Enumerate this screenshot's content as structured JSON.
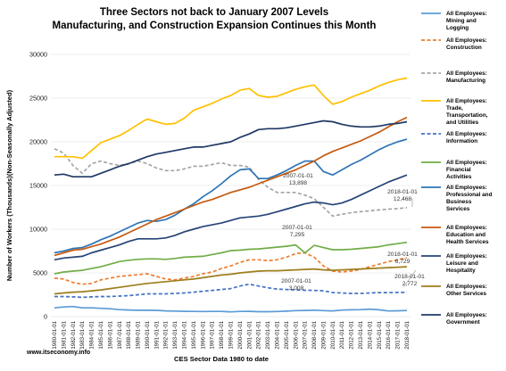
{
  "chart_data": {
    "type": "line",
    "title_line1": "Three Sectors not back to January 2007 Levels",
    "title_line2": "Manufacturing, and Construction Expansion Continues this Month",
    "xlabel": "CES Sector Data 1980 to date",
    "ylabel": "Number of Workers (Thousands)(Non-Seasonally Adjusted)",
    "source": "www.itseconomy.info",
    "ylim": [
      0,
      30000
    ],
    "yticks": [
      "0",
      "5000",
      "10000",
      "15000",
      "20000",
      "25000",
      "30000"
    ],
    "ytick_values": [
      0,
      5000,
      10000,
      15000,
      20000,
      25000,
      30000
    ],
    "grid": true,
    "legend_position": "right",
    "x": [
      "1980-01-01",
      "1981-01-01",
      "1982-01-01",
      "1983-01-01",
      "1984-01-01",
      "1985-01-01",
      "1986-01-01",
      "1987-01-01",
      "1988-01-01",
      "1989-01-01",
      "1990-01-01",
      "1991-01-01",
      "1992-01-01",
      "1993-01-01",
      "1994-01-01",
      "1995-01-01",
      "1996-01-01",
      "1997-01-01",
      "1998-01-01",
      "1999-01-01",
      "2000-01-01",
      "2001-01-01",
      "2002-01-01",
      "2003-01-01",
      "2004-01-01",
      "2005-01-01",
      "2006-01-01",
      "2007-01-01",
      "2008-01-01",
      "2009-01-01",
      "2010-01-01",
      "2011-01-01",
      "2012-01-01",
      "2013-01-01",
      "2014-01-01",
      "2015-01-01",
      "2016-01-01",
      "2017-01-01",
      "2018-01-01"
    ],
    "series": [
      {
        "name": "All Employees: Mining and Logging",
        "color": "#5b9bd5",
        "dash": "solid",
        "values": [
          1000,
          1100,
          1150,
          1000,
          1000,
          950,
          900,
          800,
          750,
          720,
          720,
          710,
          650,
          630,
          600,
          590,
          580,
          590,
          590,
          540,
          590,
          600,
          560,
          560,
          580,
          620,
          680,
          700,
          730,
          680,
          650,
          740,
          780,
          800,
          860,
          780,
          640,
          660,
          690
        ]
      },
      {
        "name": "All Employees: Construction",
        "color": "#ed7d31",
        "dash": "dashed",
        "values": [
          4400,
          4300,
          3900,
          3700,
          3800,
          4200,
          4400,
          4600,
          4700,
          4800,
          4900,
          4600,
          4300,
          4200,
          4400,
          4600,
          4900,
          5100,
          5500,
          5800,
          6200,
          6500,
          6500,
          6400,
          6500,
          6800,
          7200,
          7300,
          6800,
          5800,
          5200,
          5100,
          5200,
          5400,
          5700,
          6000,
          6300,
          6500,
          6729
        ]
      },
      {
        "name": "All Employees: Manufacturing",
        "color": "#a5a5a5",
        "dash": "dashed",
        "values": [
          19200,
          18700,
          17300,
          16400,
          17500,
          17800,
          17500,
          17300,
          17500,
          17800,
          17500,
          17000,
          16700,
          16700,
          16900,
          17200,
          17200,
          17400,
          17600,
          17300,
          17300,
          17100,
          15700,
          14800,
          14200,
          14200,
          14200,
          13898,
          13500,
          12500,
          11500,
          11700,
          11900,
          12000,
          12100,
          12200,
          12300,
          12350,
          12468
        ]
      },
      {
        "name": "All Employees: Trade, Transportation, and Utilities",
        "color": "#ffc000",
        "dash": "solid",
        "values": [
          18300,
          18300,
          18300,
          18100,
          19000,
          19900,
          20300,
          20700,
          21300,
          22000,
          22600,
          22300,
          22000,
          22100,
          22700,
          23600,
          24000,
          24400,
          24900,
          25300,
          25900,
          26100,
          25300,
          25100,
          25200,
          25600,
          26000,
          26300,
          26500,
          25300,
          24300,
          24600,
          25100,
          25500,
          25900,
          26400,
          26800,
          27100,
          27300
        ]
      },
      {
        "name": "All Employees: Information",
        "color": "#4472c4",
        "dash": "dashed",
        "values": [
          2300,
          2300,
          2250,
          2200,
          2250,
          2300,
          2300,
          2350,
          2400,
          2500,
          2600,
          2600,
          2600,
          2650,
          2700,
          2800,
          2900,
          3000,
          3100,
          3200,
          3500,
          3700,
          3500,
          3300,
          3150,
          3100,
          3050,
          3008,
          3000,
          2950,
          2750,
          2700,
          2650,
          2650,
          2700,
          2750,
          2750,
          2770,
          2772
        ]
      },
      {
        "name": "All Employees: Financial Activities",
        "color": "#70ad47",
        "dash": "solid",
        "values": [
          4900,
          5100,
          5200,
          5300,
          5500,
          5700,
          6000,
          6300,
          6450,
          6550,
          6600,
          6600,
          6550,
          6650,
          6800,
          6850,
          6900,
          7100,
          7300,
          7550,
          7600,
          7700,
          7750,
          7850,
          7950,
          8050,
          8200,
          7295,
          8150,
          7900,
          7650,
          7650,
          7700,
          7800,
          7900,
          8000,
          8200,
          8350,
          8500
        ]
      },
      {
        "name": "All Employees: Professional and Business Services",
        "color": "#2e75b6",
        "dash": "solid",
        "values": [
          7300,
          7500,
          7800,
          7900,
          8300,
          8800,
          9200,
          9700,
          10200,
          10700,
          11000,
          10900,
          11100,
          11600,
          12300,
          12900,
          13700,
          14400,
          15200,
          16100,
          16800,
          16900,
          15800,
          15800,
          16200,
          16700,
          17300,
          17800,
          17800,
          16600,
          16200,
          16800,
          17400,
          17900,
          18500,
          19100,
          19600,
          20000,
          20300
        ]
      },
      {
        "name": "All Employees: Education and Health Services",
        "color": "#c55a11",
        "dash": "solid",
        "values": [
          7000,
          7300,
          7600,
          7700,
          8000,
          8300,
          8700,
          9100,
          9600,
          10100,
          10600,
          11100,
          11500,
          11900,
          12300,
          12700,
          13100,
          13400,
          13800,
          14200,
          14500,
          14800,
          15200,
          15600,
          16000,
          16400,
          16800,
          17300,
          17800,
          18400,
          18900,
          19300,
          19700,
          20100,
          20600,
          21100,
          21700,
          22300,
          22800
        ]
      },
      {
        "name": "All Employees: Leisure and Hospitality",
        "color": "#264478",
        "dash": "solid",
        "values": [
          6500,
          6700,
          6800,
          6900,
          7300,
          7600,
          7900,
          8200,
          8600,
          8900,
          8900,
          8900,
          9000,
          9300,
          9700,
          10000,
          10300,
          10500,
          10700,
          11000,
          11300,
          11400,
          11500,
          11700,
          12000,
          12300,
          12600,
          12900,
          13100,
          13000,
          12800,
          13000,
          13400,
          13900,
          14400,
          14900,
          15400,
          15800,
          16200
        ]
      },
      {
        "name": "All Employees: Other Services",
        "color": "#9e7d1d",
        "dash": "solid",
        "values": [
          2600,
          2700,
          2800,
          2850,
          2950,
          3050,
          3200,
          3350,
          3500,
          3650,
          3800,
          3900,
          4000,
          4100,
          4200,
          4300,
          4450,
          4600,
          4750,
          4850,
          5000,
          5100,
          5200,
          5250,
          5250,
          5300,
          5350,
          5400,
          5450,
          5350,
          5300,
          5350,
          5400,
          5450,
          5500,
          5550,
          5600,
          5650,
          5700
        ]
      },
      {
        "name": "All Employees: Government",
        "color": "#203864",
        "dash": "solid",
        "values": [
          16200,
          16300,
          16000,
          16000,
          16000,
          16400,
          16800,
          17200,
          17500,
          17900,
          18300,
          18600,
          18800,
          19000,
          19200,
          19400,
          19400,
          19600,
          19800,
          20000,
          20500,
          20900,
          21400,
          21500,
          21500,
          21600,
          21800,
          22000,
          22200,
          22400,
          22300,
          22000,
          21800,
          21700,
          21700,
          21800,
          22000,
          22100,
          22300
        ]
      }
    ],
    "legend": [
      {
        "lines": [
          "All Employees:",
          "Mining and",
          "Logging"
        ],
        "color": "#5b9bd5",
        "dash": "solid"
      },
      {
        "lines": [
          "All Employees:",
          "Construction"
        ],
        "color": "#ed7d31",
        "dash": "dashed"
      },
      {
        "lines": [
          "All Employees:",
          "Manufacturing"
        ],
        "color": "#a5a5a5",
        "dash": "dashed"
      },
      {
        "lines": [
          "All Employees:",
          "Trade,",
          "Transportation,",
          "and Utilities"
        ],
        "color": "#ffc000",
        "dash": "solid"
      },
      {
        "lines": [
          "All Employees:",
          "Information"
        ],
        "color": "#4472c4",
        "dash": "dashed"
      },
      {
        "lines": [
          "All Employees:",
          "Financial",
          "Activities"
        ],
        "color": "#70ad47",
        "dash": "solid"
      },
      {
        "lines": [
          "All Employees:",
          "Professional and",
          "Business",
          "Services"
        ],
        "color": "#2e75b6",
        "dash": "solid"
      },
      {
        "lines": [
          "All Employees:",
          "Education and",
          "Health Services"
        ],
        "color": "#c55a11",
        "dash": "solid"
      },
      {
        "lines": [
          "All Employees:",
          "Leisure and",
          "Hospitality"
        ],
        "color": "#264478",
        "dash": "solid"
      },
      {
        "lines": [
          "All Employees:",
          "Other Services"
        ],
        "color": "#9e7d1d",
        "dash": "solid"
      },
      {
        "lines": [
          "All Employees:",
          "Government"
        ],
        "color": "#203864",
        "dash": "solid"
      }
    ],
    "annotations": [
      {
        "label": "2007-01-01",
        "value": "13,898"
      },
      {
        "label": "2018-01-01",
        "value": "12,468"
      },
      {
        "label": "2007-01-01",
        "value": "7,295"
      },
      {
        "label": "2018-01-01",
        "value": "6,729"
      },
      {
        "label": "2007-01-01",
        "value": "3,008"
      },
      {
        "label": "2018-01-01",
        "value": "2,772"
      }
    ]
  }
}
